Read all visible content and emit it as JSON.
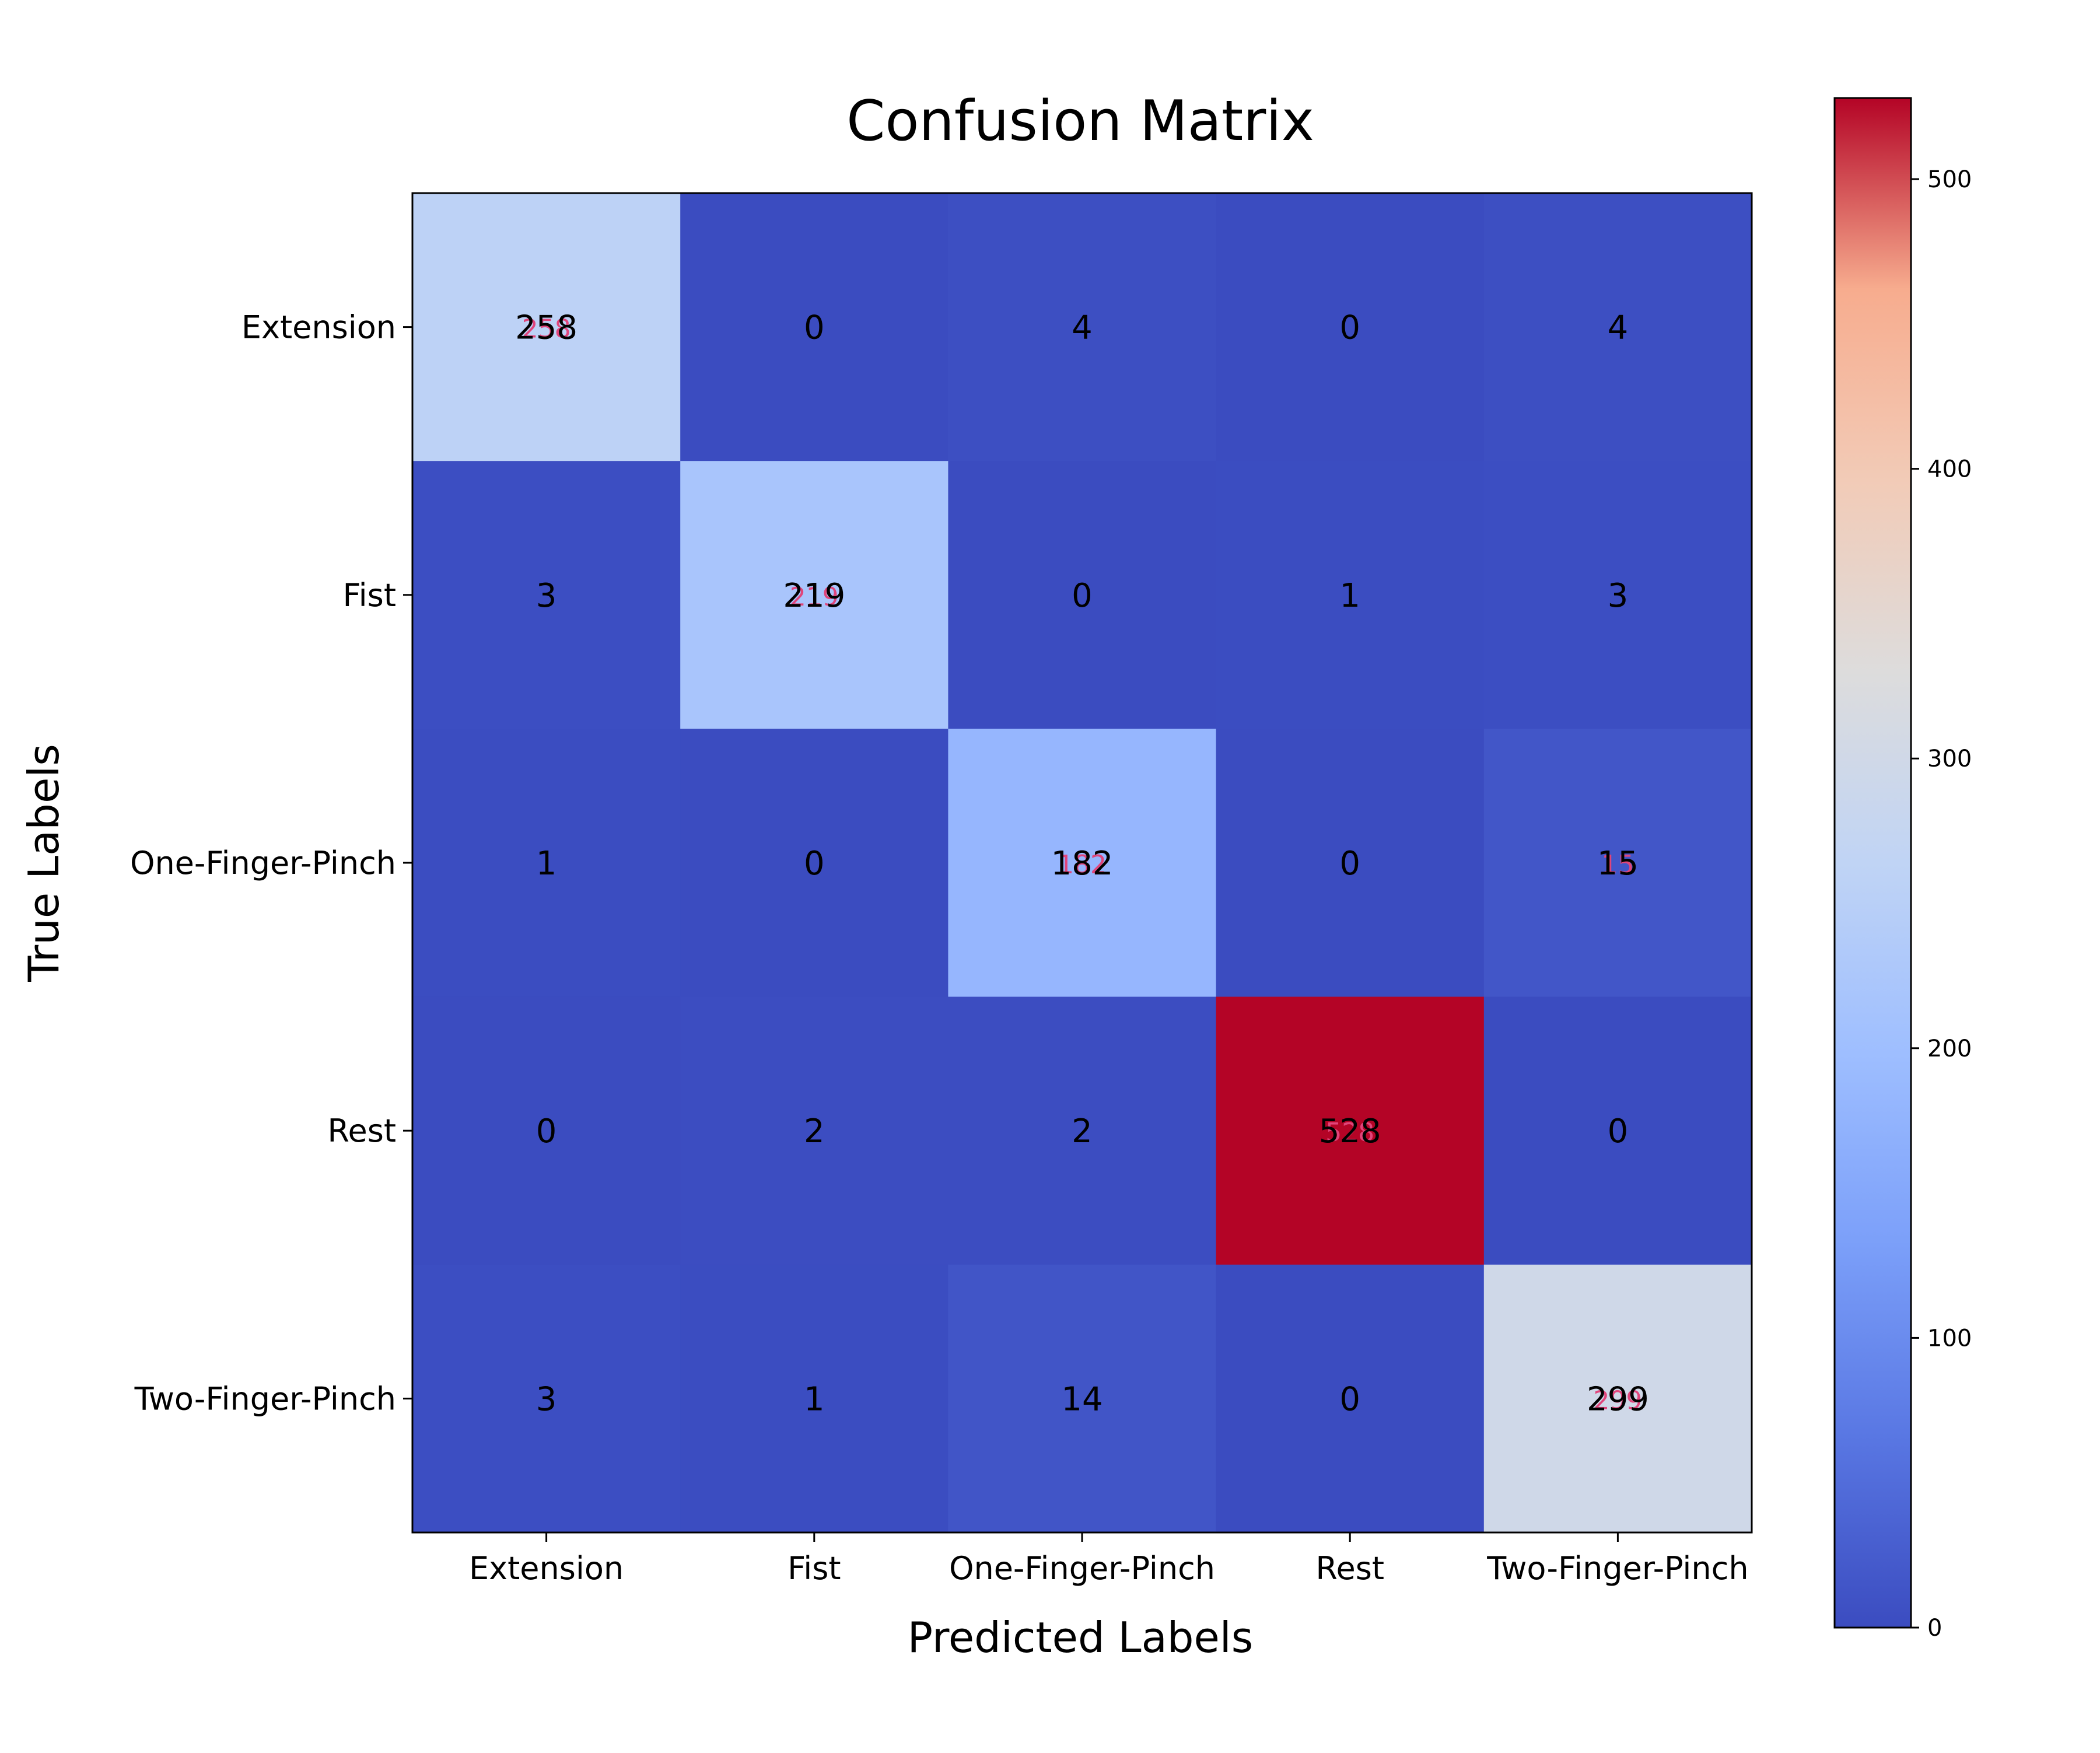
{
  "chart_data": {
    "type": "heatmap",
    "title": "Confusion Matrix",
    "xlabel": "Predicted Labels",
    "ylabel": "True Labels",
    "x_categories": [
      "Extension",
      "Fist",
      "One-Finger-Pinch",
      "Rest",
      "Two-Finger-Pinch"
    ],
    "y_categories": [
      "Extension",
      "Fist",
      "One-Finger-Pinch",
      "Rest",
      "Two-Finger-Pinch"
    ],
    "values": [
      [
        258,
        0,
        4,
        0,
        4
      ],
      [
        3,
        219,
        0,
        1,
        3
      ],
      [
        1,
        0,
        182,
        0,
        15
      ],
      [
        0,
        2,
        2,
        528,
        0
      ],
      [
        3,
        1,
        14,
        0,
        299
      ]
    ],
    "colormap": "coolwarm",
    "colorbar": {
      "range": [
        0,
        528
      ],
      "ticks": [
        0,
        100,
        200,
        300,
        400,
        500
      ]
    },
    "colors": {
      "cell_text": "#000000",
      "overlay_text": "#e0457b"
    }
  }
}
